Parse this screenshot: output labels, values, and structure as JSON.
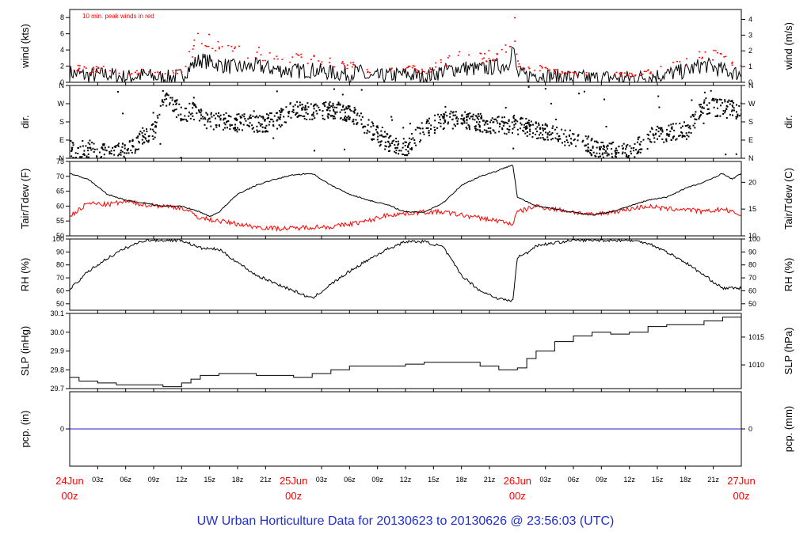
{
  "footer_title": "UW Urban Horticulture Data for 20130623  to  20130626 @ 23:56:03  (UTC)",
  "colors": {
    "line": "#000000",
    "peak": "#ff0000",
    "dew": "#ff0000",
    "precip": "#2222cc",
    "day": "#ff0000",
    "footer": "#1f2fd0"
  },
  "time_axis": {
    "hour_labels": [
      "03z",
      "06z",
      "09z",
      "12z",
      "15z",
      "18z",
      "21z",
      "03z",
      "06z",
      "09z",
      "12z",
      "15z",
      "18z",
      "21z",
      "03z",
      "06z",
      "09z",
      "12z",
      "15z",
      "18z",
      "21z"
    ],
    "hour_values": [
      3,
      6,
      9,
      12,
      15,
      18,
      21,
      27,
      30,
      33,
      36,
      39,
      42,
      45,
      51,
      54,
      57,
      60,
      63,
      66,
      69
    ],
    "day_labels": [
      {
        "date": "24Jun",
        "hour": "00z",
        "value": 0
      },
      {
        "date": "25Jun",
        "hour": "00z",
        "value": 24
      },
      {
        "date": "26Jun",
        "hour": "00z",
        "value": 48
      },
      {
        "date": "27Jun",
        "hour": "00z",
        "value": 72
      }
    ],
    "range": [
      0,
      72
    ]
  },
  "chart_data": [
    {
      "type": "line",
      "ylabel": "wind (kts)",
      "ylabel_right": "wind (m/s)",
      "ylim": [
        0,
        9
      ],
      "yticks": [
        0,
        2,
        4,
        6,
        8
      ],
      "yticks_right": [
        {
          "label": "0",
          "value": 0
        },
        {
          "label": "1",
          "value": 1.94
        },
        {
          "label": "2",
          "value": 3.89
        },
        {
          "label": "3",
          "value": 5.83
        },
        {
          "label": "4",
          "value": 7.78
        }
      ],
      "annotation": "10 min. peak winds in red",
      "x": [
        0,
        2,
        4,
        6,
        8,
        10,
        12,
        13,
        14,
        16,
        18,
        20,
        22,
        24,
        26,
        28,
        30,
        31,
        32,
        34,
        36,
        38,
        40,
        42,
        44,
        46,
        47,
        47.5,
        48,
        49,
        50,
        52,
        54,
        56,
        58,
        60,
        62,
        64,
        66,
        68,
        70,
        72
      ],
      "series": [
        {
          "name": "wind",
          "values": [
            1.2,
            0.8,
            1.0,
            0.6,
            0.9,
            0.5,
            0.8,
            2.0,
            2.8,
            2.2,
            1.8,
            2.0,
            1.6,
            1.4,
            1.5,
            1.2,
            1.0,
            1.4,
            0.5,
            0.8,
            1.0,
            0.6,
            1.4,
            1.8,
            1.6,
            2.0,
            2.2,
            4.5,
            1.0,
            0.8,
            1.0,
            0.7,
            0.6,
            0.5,
            0.6,
            0.5,
            0.7,
            1.0,
            1.4,
            2.2,
            1.5,
            1.0
          ]
        },
        {
          "name": "peak",
          "values": [
            2.0,
            1.6,
            1.8,
            1.2,
            1.6,
            1.0,
            1.5,
            4.0,
            6.5,
            4.8,
            4.0,
            3.8,
            3.2,
            3.0,
            3.0,
            2.6,
            2.2,
            2.8,
            1.2,
            1.8,
            2.0,
            1.4,
            2.6,
            3.4,
            3.2,
            3.8,
            4.2,
            8.5,
            2.0,
            1.6,
            2.0,
            1.4,
            1.2,
            1.0,
            1.2,
            1.0,
            1.4,
            2.0,
            2.8,
            4.0,
            3.0,
            2.0
          ]
        }
      ]
    },
    {
      "type": "scatter",
      "ylabel": "dir.",
      "ylabel_right": "dir.",
      "ylim": [
        0,
        360
      ],
      "yticks": [
        {
          "label": "N",
          "value": 0
        },
        {
          "label": "E",
          "value": 90
        },
        {
          "label": "S",
          "value": 180
        },
        {
          "label": "W",
          "value": 270
        },
        {
          "label": "N",
          "value": 360
        }
      ],
      "x": [
        0,
        1,
        2,
        3,
        4,
        6,
        8,
        9,
        10,
        12,
        13,
        14,
        16,
        18,
        20,
        22,
        24,
        26,
        28,
        30,
        31,
        32,
        34,
        36,
        38,
        40,
        42,
        44,
        46,
        48,
        50,
        52,
        54,
        56,
        58,
        60,
        62,
        64,
        66,
        68,
        70,
        72
      ],
      "values": [
        60,
        20,
        50,
        30,
        40,
        30,
        120,
        140,
        320,
        220,
        240,
        200,
        185,
        180,
        175,
        185,
        250,
        230,
        240,
        230,
        200,
        150,
        80,
        60,
        150,
        190,
        200,
        180,
        165,
        175,
        140,
        120,
        100,
        60,
        40,
        30,
        110,
        130,
        140,
        260,
        250,
        240
      ]
    },
    {
      "type": "line",
      "ylabel": "Tair/Tdew (F)",
      "ylabel_right": "Tair/Tdew (C)",
      "ylim": [
        50,
        75
      ],
      "yticks": [
        50,
        55,
        60,
        65,
        70,
        75
      ],
      "yticks_right": [
        {
          "label": "10",
          "value": 50
        },
        {
          "label": "15",
          "value": 59
        },
        {
          "label": "20",
          "value": 68
        }
      ],
      "x": [
        0,
        2,
        4,
        6,
        8,
        10,
        12,
        14,
        15,
        16,
        18,
        20,
        22,
        24,
        26,
        28,
        30,
        32,
        34,
        36,
        38,
        40,
        42,
        44,
        46,
        47.5,
        48,
        50,
        52,
        54,
        56,
        58,
        60,
        62,
        64,
        66,
        68,
        70,
        71,
        72
      ],
      "series": [
        {
          "name": "Tair",
          "values": [
            71,
            69,
            64,
            62,
            61,
            60,
            60,
            58,
            56.5,
            58,
            64,
            67,
            69,
            70.5,
            71,
            67,
            64,
            62,
            60.5,
            58,
            58,
            61,
            67,
            70,
            72,
            74,
            63,
            60,
            59,
            58,
            57,
            58,
            60,
            62,
            63,
            66,
            68,
            71,
            69,
            71
          ]
        },
        {
          "name": "Tdew",
          "values": [
            56.5,
            61,
            60.5,
            61.5,
            60.5,
            60,
            59.5,
            56,
            55.5,
            55,
            54,
            53,
            52.5,
            52.5,
            53,
            53,
            54,
            55,
            57,
            57.5,
            58,
            58,
            57,
            56,
            55,
            54,
            58,
            60,
            59,
            58,
            57,
            58,
            59,
            60,
            59,
            59,
            58,
            59,
            58,
            57
          ]
        }
      ]
    },
    {
      "type": "line",
      "ylabel": "RH (%)",
      "ylabel_right": "RH (%)",
      "ylim": [
        45,
        100
      ],
      "yticks": [
        50,
        60,
        70,
        80,
        90,
        100
      ],
      "x": [
        0,
        2,
        4,
        6,
        8,
        10,
        12,
        14,
        16,
        18,
        20,
        22,
        24,
        26,
        28,
        30,
        32,
        34,
        36,
        38,
        40,
        42,
        44,
        46,
        47.5,
        48,
        49,
        50,
        52,
        54,
        56,
        58,
        60,
        62,
        64,
        66,
        68,
        70,
        72
      ],
      "values": [
        61,
        75,
        85,
        93,
        99,
        99,
        99,
        93,
        92,
        82,
        72,
        66,
        60,
        54,
        65,
        75,
        84,
        92,
        98,
        98,
        94,
        72,
        60,
        54,
        52,
        86,
        89,
        95,
        97,
        99,
        99,
        99,
        99,
        97,
        90,
        82,
        72,
        62,
        62
      ]
    },
    {
      "type": "line",
      "ylabel": "SLP (inHg)",
      "ylabel_right": "SLP (hPa)",
      "ylim": [
        29.7,
        30.1
      ],
      "yticks": [
        29.7,
        29.8,
        29.9,
        30.0,
        30.1
      ],
      "yticks_right": [
        {
          "label": "1010",
          "value": 29.826
        },
        {
          "label": "1015",
          "value": 29.974
        }
      ],
      "x": [
        0,
        1,
        3,
        5,
        8,
        10,
        12,
        13,
        14,
        16,
        18,
        20,
        22,
        24,
        26,
        28,
        30,
        32,
        36,
        38,
        40,
        44,
        46,
        48,
        49,
        50,
        52,
        54,
        56,
        58,
        60,
        62,
        64,
        66,
        68,
        70,
        72
      ],
      "values": [
        29.76,
        29.74,
        29.73,
        29.72,
        29.72,
        29.71,
        29.73,
        29.75,
        29.77,
        29.78,
        29.78,
        29.77,
        29.77,
        29.76,
        29.78,
        29.8,
        29.82,
        29.82,
        29.83,
        29.84,
        29.84,
        29.82,
        29.8,
        29.81,
        29.86,
        29.9,
        29.95,
        29.98,
        30.0,
        29.99,
        30.0,
        30.03,
        30.04,
        30.04,
        30.06,
        30.08,
        30.1
      ]
    },
    {
      "type": "line",
      "ylabel": "pcp. (in)",
      "ylabel_right": "pcp. (mm)",
      "ylim": [
        -1,
        1
      ],
      "yticks": [
        0
      ],
      "yticks_right": [
        {
          "label": "0",
          "value": 0
        }
      ],
      "x": [
        0,
        72
      ],
      "values": [
        0,
        0
      ]
    }
  ]
}
